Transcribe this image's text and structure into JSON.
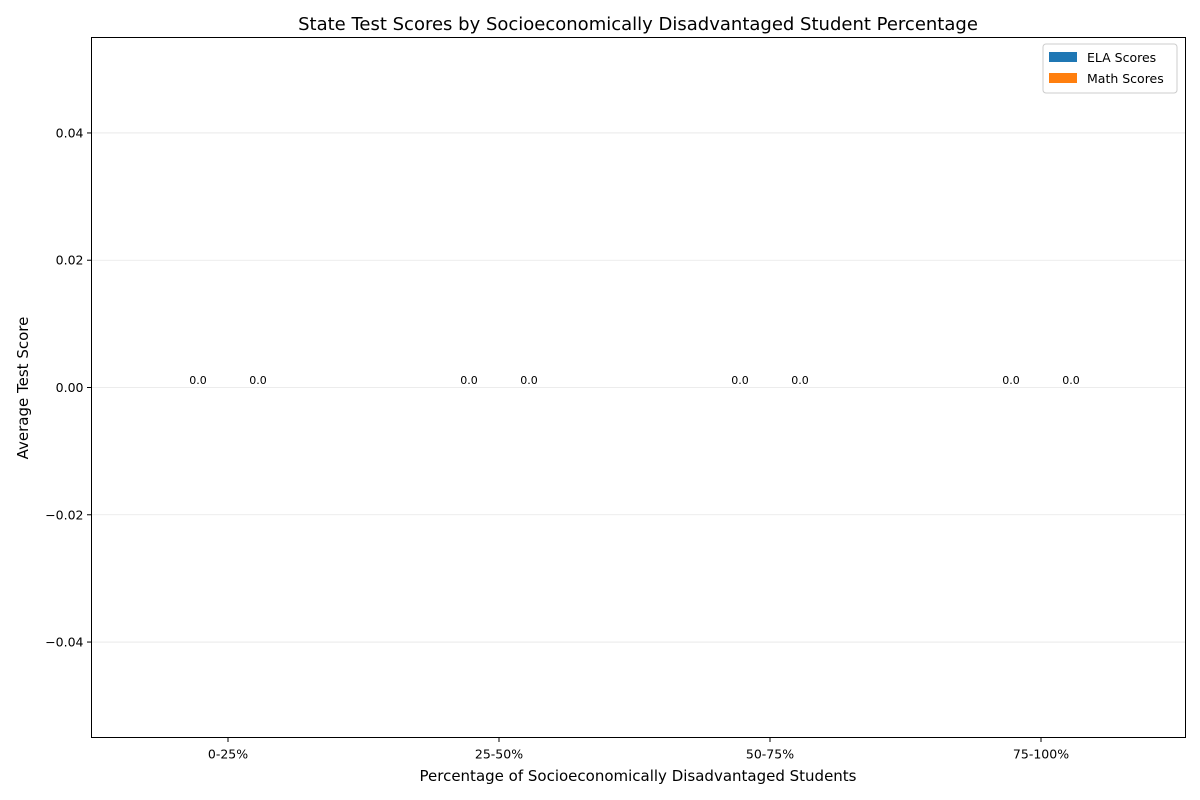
{
  "chart_data": {
    "type": "bar",
    "title": "State Test Scores by Socioeconomically Disadvantaged Student Percentage",
    "xlabel": "Percentage of Socioeconomically Disadvantaged Students",
    "ylabel": "Average Test Score",
    "categories": [
      "0-25%",
      "25-50%",
      "50-75%",
      "75-100%"
    ],
    "series": [
      {
        "name": "ELA Scores",
        "values": [
          0.0,
          0.0,
          0.0,
          0.0
        ],
        "color": "#1f77b4"
      },
      {
        "name": "Math Scores",
        "values": [
          0.0,
          0.0,
          0.0,
          0.0
        ],
        "color": "#ff7f0e"
      }
    ],
    "ylim": [
      -0.055,
      0.055
    ],
    "yticks": [
      -0.04,
      -0.02,
      0.0,
      0.02,
      0.04
    ],
    "ytick_labels": [
      "−0.04",
      "−0.02",
      "0.00",
      "0.02",
      "0.04"
    ],
    "data_labels": [
      "0.0",
      "0.0",
      "0.0",
      "0.0",
      "0.0",
      "0.0",
      "0.0",
      "0.0"
    ],
    "grid": "y",
    "legend_position": "top-right"
  }
}
